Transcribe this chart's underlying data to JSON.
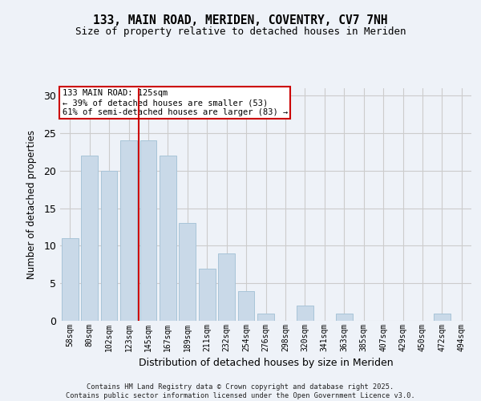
{
  "title1": "133, MAIN ROAD, MERIDEN, COVENTRY, CV7 7NH",
  "title2": "Size of property relative to detached houses in Meriden",
  "xlabel": "Distribution of detached houses by size in Meriden",
  "ylabel": "Number of detached properties",
  "categories": [
    "58sqm",
    "80sqm",
    "102sqm",
    "123sqm",
    "145sqm",
    "167sqm",
    "189sqm",
    "211sqm",
    "232sqm",
    "254sqm",
    "276sqm",
    "298sqm",
    "320sqm",
    "341sqm",
    "363sqm",
    "385sqm",
    "407sqm",
    "429sqm",
    "450sqm",
    "472sqm",
    "494sqm"
  ],
  "values": [
    11,
    22,
    20,
    24,
    24,
    22,
    13,
    7,
    9,
    4,
    1,
    0,
    2,
    0,
    1,
    0,
    0,
    0,
    0,
    1,
    0
  ],
  "bar_color": "#c9d9e8",
  "bar_edgecolor": "#a8c4d8",
  "vline_x": 3.5,
  "vline_color": "#cc0000",
  "annotation_text": "133 MAIN ROAD: 125sqm\n← 39% of detached houses are smaller (53)\n61% of semi-detached houses are larger (83) →",
  "annotation_box_color": "#ffffff",
  "annotation_box_edgecolor": "#cc0000",
  "ylim": [
    0,
    31
  ],
  "yticks": [
    0,
    5,
    10,
    15,
    20,
    25,
    30
  ],
  "grid_color": "#cccccc",
  "background_color": "#eef2f8",
  "footer_text": "Contains HM Land Registry data © Crown copyright and database right 2025.\nContains public sector information licensed under the Open Government Licence v3.0."
}
